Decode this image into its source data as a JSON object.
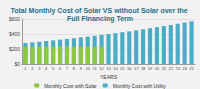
{
  "chart_data": {
    "type": "bar",
    "title": "Total Monthly Cost of Solar VS without Solar over the Full Financing Term",
    "x_label": "YEARS",
    "categories": [
      "1",
      "2",
      "3",
      "4",
      "5",
      "6",
      "7",
      "8",
      "9",
      "10",
      "11",
      "12",
      "13",
      "14",
      "15",
      "16",
      "17",
      "18",
      "19",
      "20",
      "21",
      "22",
      "23",
      "24",
      "25"
    ],
    "series": [
      {
        "name": "Monthly Cost with Solar",
        "color": "#8dc63f",
        "values": [
          230,
          230,
          230,
          230,
          230,
          230,
          230,
          230,
          230,
          230,
          230,
          230,
          0,
          0,
          0,
          0,
          0,
          0,
          0,
          0,
          0,
          0,
          0,
          0,
          0
        ]
      },
      {
        "name": "Monthly Cost with Utility",
        "color": "#4bacc6",
        "values": [
          280,
          288,
          297,
          306,
          315,
          325,
          334,
          344,
          355,
          365,
          376,
          388,
          399,
          411,
          424,
          436,
          449,
          463,
          477,
          491,
          506,
          521,
          537,
          553,
          570
        ]
      }
    ],
    "ylim": [
      0,
      600
    ],
    "yticks": [
      {
        "value": 0,
        "label": "$0"
      },
      {
        "value": 200,
        "label": "$200"
      },
      {
        "value": 400,
        "label": "$400"
      },
      {
        "value": 600,
        "label": "$600"
      }
    ],
    "grid": true,
    "legend": "bottom"
  }
}
